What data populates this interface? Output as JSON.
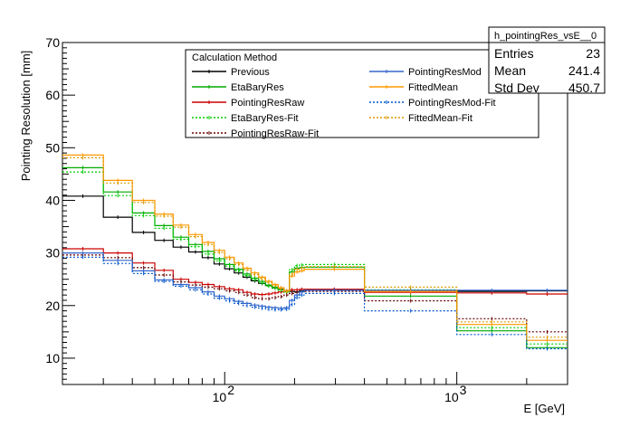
{
  "chart_data": {
    "type": "line",
    "style": "histogram-step",
    "title": "",
    "xlabel": "E [GeV]",
    "ylabel": "Pointing Resolution [mm]",
    "x_scale": "log",
    "xlim": [
      20,
      3000
    ],
    "ylim": [
      5,
      70
    ],
    "y_ticks": [
      10,
      20,
      30,
      40,
      50,
      60,
      70
    ],
    "x_tick_labels": [
      {
        "value": 100,
        "base": "10",
        "exp": "2"
      },
      {
        "value": 1000,
        "base": "10",
        "exp": "3"
      }
    ],
    "bin_edges": [
      20,
      30,
      40,
      50,
      60,
      70,
      80,
      90,
      100,
      110,
      120,
      130,
      140,
      150,
      160,
      170,
      180,
      190,
      200,
      210,
      220,
      400,
      1000,
      2000,
      3000
    ],
    "series": [
      {
        "name": "Previous",
        "color": "#000000",
        "dash": "solid",
        "values": [
          40.8,
          36.8,
          33.9,
          32.4,
          31.1,
          30.2,
          29.1,
          27.9,
          27.0,
          26.2,
          25.4,
          24.7,
          24.2,
          23.8,
          23.4,
          23.1,
          22.8,
          22.7,
          22.6,
          22.8,
          23.0,
          22.8,
          22.7,
          22.8
        ]
      },
      {
        "name": "EtaBaryRes",
        "color": "#00aa00",
        "dash": "solid",
        "values": [
          46.2,
          41.6,
          37.6,
          35.2,
          33.0,
          31.6,
          30.3,
          28.9,
          27.8,
          26.9,
          26.0,
          25.2,
          24.6,
          23.9,
          23.5,
          23.0,
          22.6,
          26.4,
          27.1,
          27.2,
          27.3,
          21.8,
          15.2,
          12.0
        ]
      },
      {
        "name": "PointingResRaw",
        "color": "#cc0000",
        "dash": "solid",
        "values": [
          30.8,
          30.0,
          28.1,
          26.7,
          25.0,
          24.4,
          24.0,
          23.6,
          23.2,
          23.0,
          22.5,
          22.2,
          22.1,
          22.2,
          22.4,
          22.6,
          22.8,
          23.0,
          23.0,
          23.1,
          23.1,
          22.5,
          22.4,
          22.2
        ]
      },
      {
        "name": "EtaBaryRes-Fit",
        "color": "#00cc00",
        "dash": "dotted",
        "values": [
          45.4,
          40.9,
          37.1,
          34.7,
          32.6,
          31.2,
          29.8,
          28.5,
          27.5,
          26.6,
          25.7,
          24.9,
          24.3,
          23.7,
          23.3,
          22.9,
          22.5,
          26.8,
          27.6,
          27.7,
          27.8,
          23.0,
          15.8,
          12.7
        ]
      },
      {
        "name": "PointingResRaw-Fit",
        "color": "#660000",
        "dash": "dotted",
        "values": [
          29.6,
          29.1,
          27.2,
          25.8,
          24.5,
          23.9,
          23.5,
          23.2,
          22.8,
          22.5,
          22.0,
          21.5,
          21.3,
          21.3,
          21.5,
          21.7,
          22.0,
          22.3,
          22.5,
          22.6,
          22.7,
          20.9,
          17.5,
          15.0
        ]
      },
      {
        "name": "PointingResMod",
        "color": "#3366cc",
        "dash": "solid",
        "values": [
          30.0,
          28.6,
          26.6,
          24.9,
          24.0,
          23.4,
          22.6,
          21.8,
          21.3,
          20.8,
          20.4,
          20.1,
          19.9,
          19.7,
          19.6,
          19.5,
          19.6,
          21.0,
          22.0,
          22.6,
          22.9,
          22.9,
          22.9,
          22.9
        ]
      },
      {
        "name": "FittedMean",
        "color": "#ff9900",
        "dash": "solid",
        "values": [
          48.6,
          43.8,
          40.0,
          37.4,
          35.3,
          33.5,
          32.0,
          30.5,
          29.2,
          28.1,
          27.1,
          26.2,
          25.4,
          24.6,
          24.0,
          23.4,
          22.8,
          25.6,
          26.4,
          26.6,
          26.9,
          22.7,
          16.4,
          13.4
        ]
      },
      {
        "name": "PointingResMod-Fit",
        "color": "#0055cc",
        "dash": "dotted",
        "values": [
          29.2,
          28.0,
          26.1,
          24.6,
          23.7,
          23.0,
          22.2,
          21.4,
          20.9,
          20.4,
          20.0,
          19.7,
          19.5,
          19.3,
          19.2,
          19.2,
          19.3,
          20.2,
          21.5,
          22.0,
          22.3,
          19.0,
          14.5,
          11.8
        ]
      },
      {
        "name": "FittedMean-Fit",
        "color": "#dd9900",
        "dash": "dotted",
        "values": [
          48.1,
          43.3,
          39.6,
          37.0,
          34.9,
          33.1,
          31.6,
          30.1,
          28.9,
          27.8,
          26.8,
          25.9,
          25.1,
          24.4,
          23.8,
          23.2,
          22.7,
          26.0,
          26.9,
          27.1,
          27.4,
          23.5,
          16.9,
          14.0
        ]
      }
    ],
    "legend": {
      "title": "Calculation Method",
      "placement": "top-center",
      "columns": [
        [
          "Previous",
          "EtaBaryRes",
          "PointingResRaw",
          "EtaBaryRes-Fit",
          "PointingResRaw-Fit"
        ],
        [
          "PointingResMod",
          "FittedMean",
          "PointingResMod-Fit",
          "FittedMean-Fit"
        ]
      ]
    },
    "stats_box": {
      "title": "h_pointingRes_vsE__0",
      "placement": "top-right",
      "rows": [
        {
          "label": "Entries",
          "value": "23"
        },
        {
          "label": "Mean",
          "value": "241.4"
        },
        {
          "label": "Std Dev",
          "value": "450.7"
        }
      ]
    },
    "grid": false
  }
}
